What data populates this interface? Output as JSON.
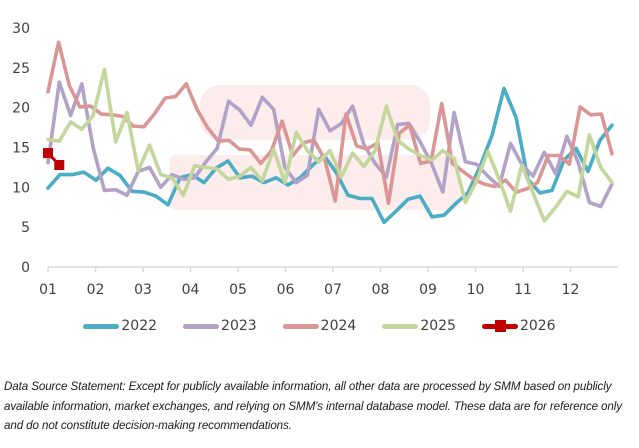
{
  "chart_data": {
    "type": "line",
    "title": "",
    "xlabel": "",
    "ylabel": "",
    "ylim": [
      0,
      30
    ],
    "yticks": [
      0,
      5,
      10,
      15,
      20,
      25,
      30
    ],
    "ytick_labels": [
      "0",
      "5",
      "10",
      "15",
      "20",
      "25",
      "30"
    ],
    "x_categories": [
      "01",
      "02",
      "03",
      "04",
      "05",
      "06",
      "07",
      "08",
      "09",
      "10",
      "11",
      "12"
    ],
    "points_per_category": 4,
    "grid": false,
    "legend_position": "bottom",
    "series": [
      {
        "name": "2022",
        "color": "#4bacc6",
        "values": [
          9.9,
          11.6,
          11.6,
          11.9,
          10.9,
          12.4,
          11.5,
          9.5,
          9.4,
          8.9,
          7.8,
          11.2,
          11.6,
          10.6,
          12.4,
          13.3,
          11.2,
          11.4,
          10.6,
          11.2,
          10.3,
          11.2,
          12.7,
          14.0,
          11.9,
          9.0,
          8.6,
          8.6,
          5.6,
          7.0,
          8.5,
          8.9,
          6.3,
          6.5,
          8.0,
          9.3,
          12.6,
          16.5,
          22.4,
          18.8,
          11.0,
          9.3,
          9.6,
          13.4,
          14.9,
          12.0,
          15.9,
          17.8
        ]
      },
      {
        "name": "2023",
        "color": "#b3a2c7",
        "values": [
          13.1,
          23.2,
          19.0,
          23.0,
          15.0,
          9.6,
          9.7,
          9.0,
          12.0,
          12.5,
          10.0,
          11.6,
          11.0,
          11.2,
          13.2,
          14.9,
          20.8,
          19.7,
          17.8,
          21.3,
          19.8,
          12.5,
          10.6,
          11.5,
          19.8,
          17.1,
          18.0,
          20.2,
          15.4,
          13.0,
          11.3,
          17.9,
          18.0,
          15.7,
          13.0,
          9.4,
          19.4,
          13.2,
          12.9,
          11.4,
          10.1,
          15.5,
          12.9,
          11.4,
          14.4,
          11.7,
          16.4,
          13.1,
          8.1,
          7.6,
          10.4
        ]
      },
      {
        "name": "2024",
        "color": "#d99694",
        "values": [
          22.0,
          28.2,
          22.8,
          20.1,
          20.2,
          19.2,
          19.1,
          18.9,
          17.7,
          17.6,
          19.2,
          21.2,
          21.4,
          23.0,
          19.8,
          17.5,
          15.8,
          15.9,
          14.8,
          14.7,
          13.0,
          14.6,
          18.3,
          14.0,
          15.6,
          15.9,
          13.5,
          8.3,
          19.2,
          15.2,
          14.8,
          15.6,
          8.0,
          16.8,
          17.8,
          13.0,
          13.3,
          20.5,
          13.0,
          12.0,
          11.0,
          10.4,
          10.1,
          10.9,
          9.4,
          9.8,
          10.6,
          14.0,
          14.0,
          12.9,
          20.1,
          19.1,
          19.2,
          14.2
        ]
      },
      {
        "name": "2025",
        "color": "#c3d69b",
        "values": [
          16.0,
          15.8,
          18.2,
          17.3,
          19.0,
          24.8,
          15.7,
          19.4,
          12.1,
          15.3,
          11.6,
          11.2,
          9.0,
          12.7,
          12.5,
          12.3,
          11.0,
          11.4,
          12.5,
          10.8,
          14.8,
          10.6,
          16.9,
          14.6,
          13.2,
          14.6,
          11.3,
          14.3,
          12.6,
          14.6,
          20.2,
          15.9,
          14.8,
          14.0,
          13.4,
          14.6,
          13.6,
          8.1,
          10.8,
          14.5,
          11.0,
          7.0,
          12.8,
          9.3,
          5.8,
          7.5,
          9.5,
          8.8,
          16.6,
          12.5,
          10.6
        ]
      },
      {
        "name": "2026",
        "color": "#c00000",
        "marker": "square",
        "values": [
          14.3,
          12.8
        ]
      }
    ]
  },
  "legend": {
    "items": [
      "2022",
      "2023",
      "2024",
      "2025",
      "2026"
    ]
  },
  "footnote": "Data Source Statement: Except for publicly available information, all other data are processed by SMM based on publicly available information, market exchanges, and relying on SMM's internal database model. These data are for reference only and do not constitute decision-making recommendations."
}
